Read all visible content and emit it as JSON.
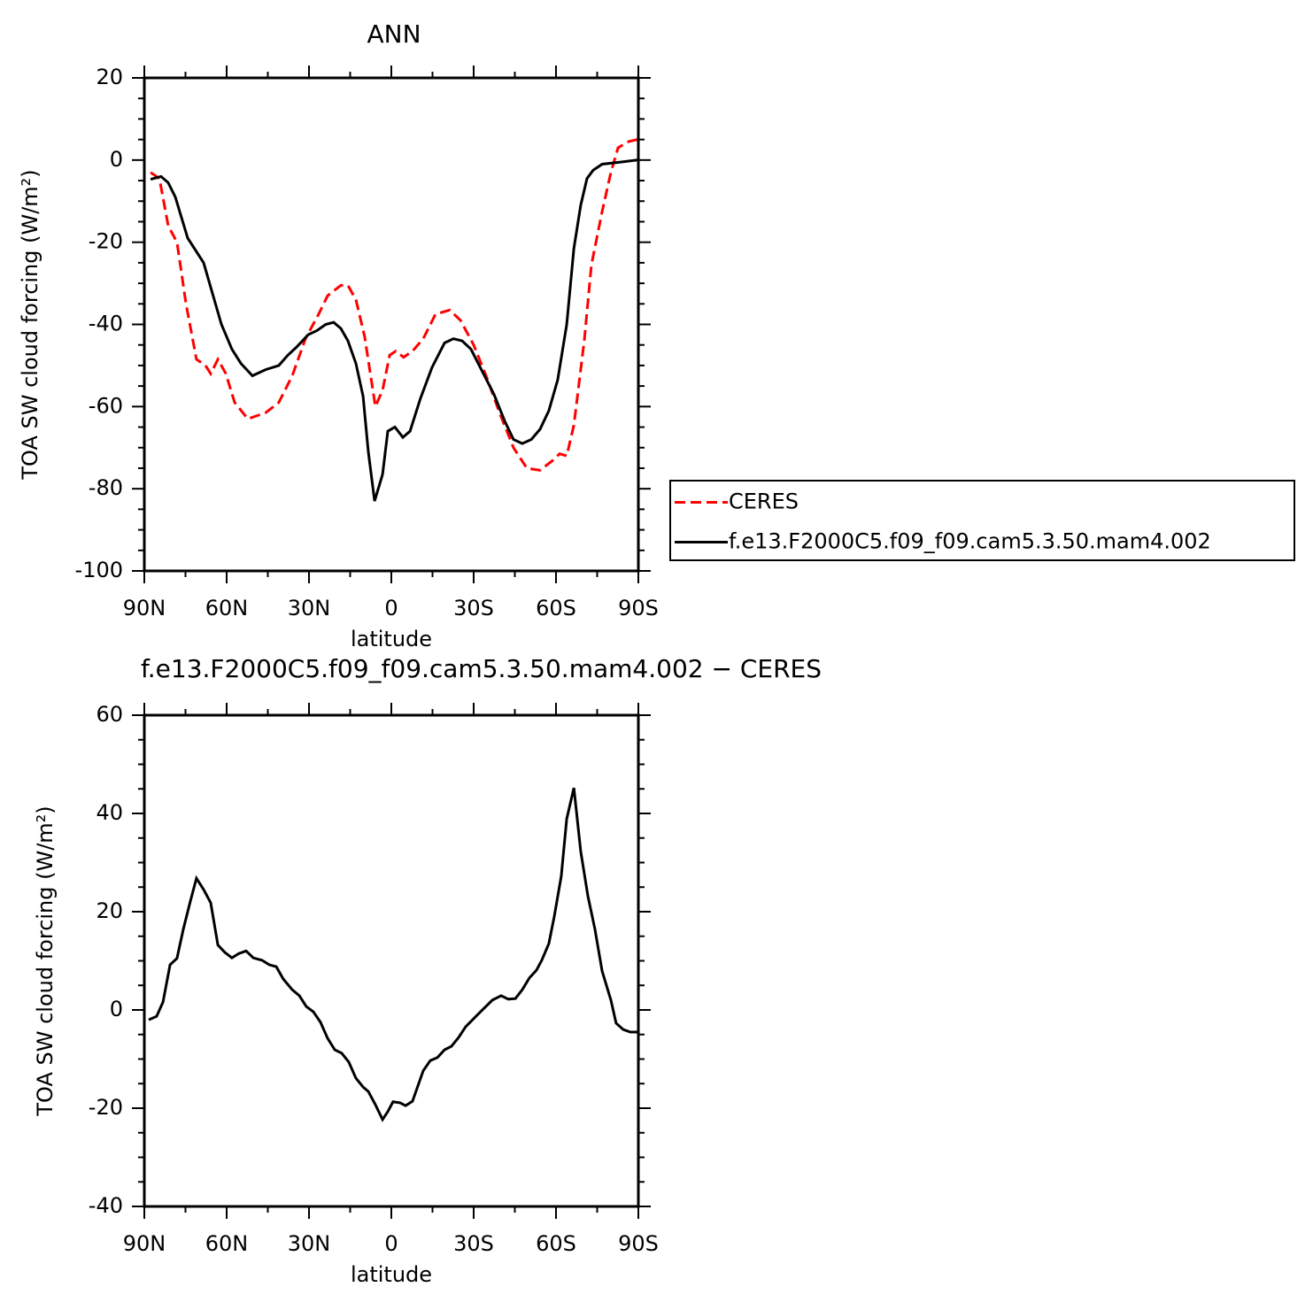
{
  "chart_data": [
    {
      "type": "line",
      "title": "ANN",
      "xlabel": "latitude",
      "ylabel": "TOA SW cloud forcing (W/m²)",
      "xlim": [
        90,
        -90
      ],
      "ylim": [
        20,
        -100
      ],
      "xticks": [
        {
          "value": 90,
          "label": "90N"
        },
        {
          "value": 60,
          "label": "60N"
        },
        {
          "value": 30,
          "label": "30N"
        },
        0,
        {
          "value": -30,
          "label": "30S"
        },
        {
          "value": -60,
          "label": "60S"
        },
        {
          "value": -90,
          "label": "90S"
        }
      ],
      "yticks": [
        20,
        0,
        -20,
        -40,
        -60,
        -80,
        -100
      ],
      "legend": "right",
      "series": [
        {
          "name": "CERES",
          "color": "#ff0000",
          "line_style": "dashed",
          "x": [
            87.7,
            84.5,
            81.3,
            78.1,
            74.8,
            71,
            67.7,
            65.8,
            63.2,
            60.3,
            57.1,
            52.3,
            45.8,
            41,
            36.1,
            31.3,
            26.5,
            23.2,
            18.4,
            15.8,
            12.9,
            9.7,
            5.8,
            3.2,
            0.6,
            -1.6,
            -4.5,
            -7.7,
            -11.6,
            -16.1,
            -21.3,
            -25.2,
            -30,
            -34.8,
            -39.7,
            -44.5,
            -49.4,
            -54.2,
            -59,
            -61.3,
            -63.9,
            -66.5,
            -70.3,
            -72.9,
            -76.8,
            -80,
            -82.6,
            -86.5,
            -89.7
          ],
          "values": [
            -3,
            -4.5,
            -16,
            -20,
            -35,
            -48.5,
            -50,
            -52,
            -48.5,
            -52,
            -59,
            -63,
            -61.5,
            -59,
            -52.5,
            -43.5,
            -37.5,
            -33,
            -30.5,
            -30.5,
            -34,
            -43,
            -60,
            -56,
            -47.5,
            -46.5,
            -48,
            -46.5,
            -43.5,
            -37.5,
            -36.5,
            -39,
            -45,
            -53,
            -62,
            -70,
            -75,
            -75.5,
            -73,
            -71.5,
            -72,
            -64.5,
            -44,
            -25.5,
            -12.5,
            -3,
            3,
            4.5,
            5
          ]
        },
        {
          "name": "f.e13.F2000C5.f09_f09.cam5.3.50.mam4.002",
          "color": "#000000",
          "line_style": "solid",
          "x": [
            87.7,
            83.9,
            81.3,
            78.7,
            74.2,
            68.4,
            61.9,
            58.1,
            54.8,
            50.6,
            45.8,
            41,
            37.7,
            34.5,
            30.3,
            27.1,
            23.9,
            21,
            18.4,
            15.8,
            12.9,
            10.3,
            8.4,
            6.1,
            3.2,
            1.3,
            -1.3,
            -4.2,
            -6.8,
            -10.6,
            -14.8,
            -19.4,
            -22.6,
            -25.8,
            -29,
            -33.2,
            -37.4,
            -41.3,
            -44.5,
            -47.7,
            -51,
            -54.2,
            -57.4,
            -60.6,
            -63.9,
            -66.5,
            -69,
            -71.3,
            -73.5,
            -76.8,
            -83.2,
            -89.7
          ],
          "values": [
            -4.7,
            -4,
            -5.5,
            -9,
            -19,
            -25,
            -40,
            -46,
            -49.5,
            -52.5,
            -51,
            -50,
            -47.5,
            -45.5,
            -42.5,
            -41.5,
            -40,
            -39.5,
            -41,
            -44,
            -49.5,
            -57.5,
            -71,
            -83,
            -76.5,
            -66,
            -65,
            -67.5,
            -66,
            -58,
            -50.5,
            -44.5,
            -43.5,
            -44,
            -46,
            -51.5,
            -57,
            -63.5,
            -68,
            -69,
            -68,
            -65.5,
            -61,
            -53.5,
            -40,
            -21.5,
            -11,
            -4.5,
            -2.5,
            -1,
            -0.5,
            0
          ]
        }
      ]
    },
    {
      "type": "line",
      "title": "f.e13.F2000C5.f09_f09.cam5.3.50.mam4.002 − CERES",
      "xlabel": "latitude",
      "ylabel": "TOA SW cloud forcing (W/m²)",
      "xlim": [
        90,
        -90
      ],
      "ylim": [
        60,
        -40
      ],
      "xticks": [
        {
          "value": 90,
          "label": "90N"
        },
        {
          "value": 60,
          "label": "60N"
        },
        {
          "value": 30,
          "label": "30N"
        },
        0,
        {
          "value": -30,
          "label": "30S"
        },
        {
          "value": -60,
          "label": "60S"
        },
        {
          "value": -90,
          "label": "90S"
        }
      ],
      "yticks": [
        60,
        40,
        20,
        0,
        -20,
        -40
      ],
      "series": [
        {
          "name": null,
          "color": "#000000",
          "line_style": "solid",
          "x": [
            88.4,
            85.5,
            83.2,
            80.6,
            78.1,
            75.8,
            73.2,
            71,
            68.4,
            65.8,
            63.2,
            60.6,
            58.1,
            55.5,
            52.9,
            50.3,
            47.1,
            44.5,
            41.9,
            39.4,
            36.1,
            33.5,
            31,
            28.4,
            25.8,
            23.2,
            20.6,
            18.1,
            15.5,
            12.9,
            10.3,
            8.4,
            5.8,
            3.2,
            1.3,
            -0.6,
            -3.2,
            -5.2,
            -7.7,
            -11.6,
            -14.2,
            -16.8,
            -19.4,
            -21.9,
            -24.5,
            -27.1,
            -30.3,
            -33.5,
            -36.8,
            -40,
            -42.6,
            -45.2,
            -47.7,
            -50.3,
            -52.9,
            -54.8,
            -57.4,
            -59.4,
            -61.9,
            -63.9,
            -66.5,
            -69,
            -71.6,
            -74.2,
            -76.8,
            -80,
            -81.9,
            -84.5,
            -87.1,
            -89.7
          ],
          "values": [
            -2,
            -1.3,
            1.6,
            9.2,
            10.5,
            16.4,
            22.2,
            26.8,
            24.5,
            21.8,
            13.2,
            11.7,
            10.6,
            11.5,
            12,
            10.6,
            10.1,
            9.2,
            8.8,
            6.3,
            4.1,
            2.9,
            0.7,
            -0.4,
            -2.5,
            -5.8,
            -8.1,
            -8.8,
            -10.6,
            -13.9,
            -15.7,
            -16.6,
            -19.3,
            -22.3,
            -20.7,
            -18.7,
            -18.9,
            -19.5,
            -18.6,
            -12.4,
            -10.3,
            -9.7,
            -8.1,
            -7.4,
            -5.6,
            -3.4,
            -1.6,
            0.2,
            2,
            2.9,
            2.2,
            2.3,
            4.1,
            6.5,
            8.1,
            10.1,
            13.5,
            19.1,
            27.2,
            38.9,
            45.2,
            32.3,
            23.2,
            16.4,
            7.9,
            2,
            -2.7,
            -4,
            -4.5,
            -4.5
          ]
        }
      ]
    }
  ]
}
